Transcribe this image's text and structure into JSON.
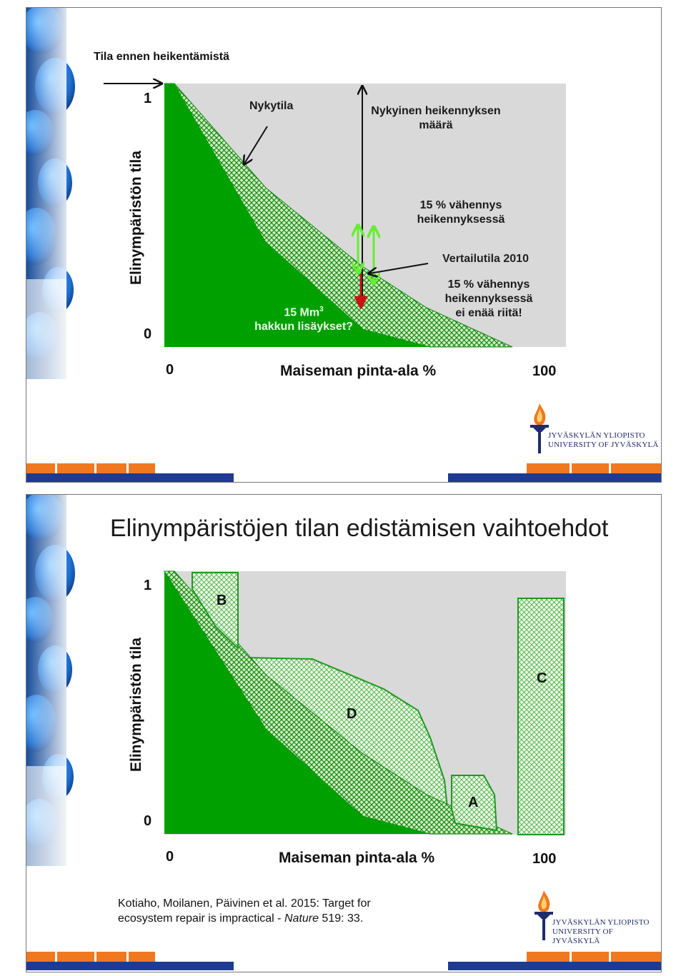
{
  "slide1": {
    "top_note": "Tila ennen heikentämistä",
    "y_axis_label": "Elinympäristön tila",
    "y_tick_top": "1",
    "y_tick_bottom": "0",
    "x_tick_left": "0",
    "x_tick_right": "100",
    "x_axis_label": "Maiseman pinta-ala %",
    "ann_nykytila": "Nykytila",
    "ann_current_line1": "Nykyinen heikennyksen",
    "ann_current_line2": "määrä",
    "ann_15_line1": "15 % vähennys",
    "ann_15_line2": "heikennyksessä",
    "ann_reference": "Vertailutila 2010",
    "ann_15b_line1": "15 % vähennys",
    "ann_15b_line2": "heikennyksessä",
    "ann_15b_line3": "ei enää riitä!",
    "ann_mm_prefix": "15 Mm",
    "ann_mm_sup": "3",
    "ann_mm_line2": "hakkun lisäykset?"
  },
  "slide2": {
    "title": "Elinympäristöjen tilan edistämisen vaihtoehdot",
    "y_axis_label": "Elinympäristön tila",
    "y_tick_top": "1",
    "y_tick_bottom": "0",
    "x_tick_left": "0",
    "x_tick_right": "100",
    "x_axis_label": "Maiseman pinta-ala %",
    "region_a": "A",
    "region_b": "B",
    "region_c": "C",
    "region_d": "D",
    "citation_line1": "Kotiaho, Moilanen, Päivinen et al. 2015: Target for",
    "citation_line2_prefix": "ecosystem repair is impractical - ",
    "citation_journal": "Nature",
    "citation_suffix": " 519: 33."
  },
  "logo": {
    "line1": "JYVÄSKYLÄN YLIOPISTO",
    "line2": "UNIVERSITY OF JYVÄSKYLÄ"
  },
  "colors": {
    "green": "#00a000",
    "plot_bg": "#d9d9d9",
    "hatch_light": "#d8f0c8",
    "arrow_light_green": "#66ee33",
    "arrow_red": "#cc1111",
    "bar_orange": "#f07820",
    "bar_blue": "#1f3a93",
    "logo_blue": "#1f2b6b"
  }
}
